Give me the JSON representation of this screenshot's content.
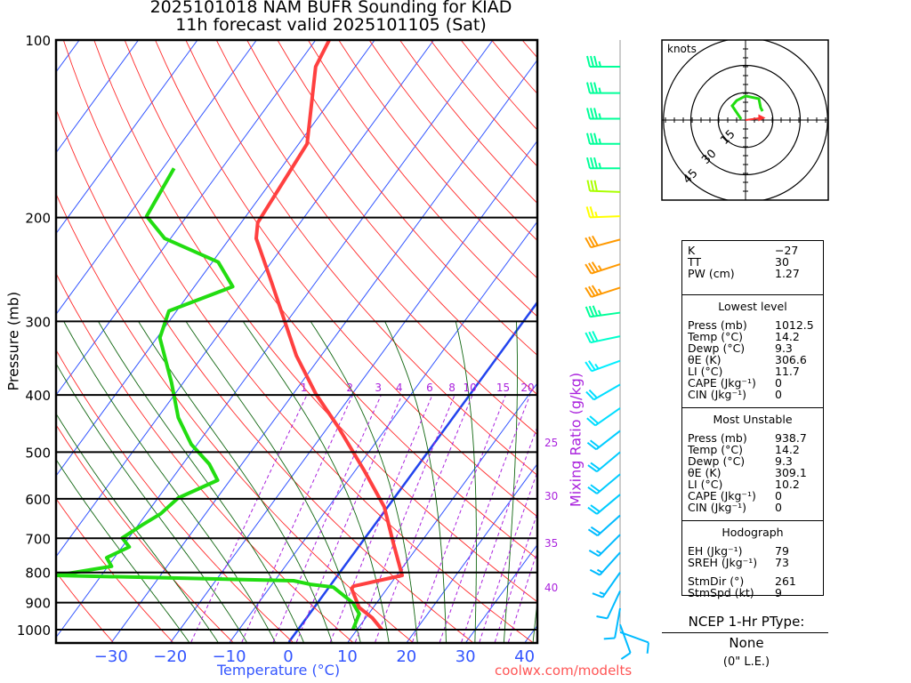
{
  "title": {
    "line1": "2025101018 NAM BUFR Sounding for KIAD",
    "line2": "11h forecast valid 2025101105 (Sat)"
  },
  "credit": "coolwx.com/modelts",
  "chart_data": {
    "type": "skew-t",
    "xlabel": "Temperature (°C)",
    "ylabel": "Pressure (mb)",
    "right_label": "Mixing Ratio (g/kg)",
    "pressure_ticks": [
      "100",
      "200",
      "300",
      "400",
      "500",
      "600",
      "700",
      "800",
      "900",
      "1000"
    ],
    "temp_ticks": [
      "−30",
      "−20",
      "−10",
      "0",
      "10",
      "20",
      "30",
      "40"
    ],
    "temp_tick_values": [
      -30,
      -20,
      -10,
      0,
      10,
      20,
      30,
      40
    ],
    "mixing_ratio_top_labels": [
      "1",
      "2",
      "3",
      "4",
      "6",
      "8",
      "10",
      "15",
      "20"
    ],
    "mixing_ratio_top_values": [
      1,
      2,
      3,
      4,
      6,
      8,
      10,
      15,
      20
    ],
    "mixing_ratio_right_labels": [
      "25",
      "30",
      "35",
      "40"
    ],
    "temperature_profile": [
      [
        1000,
        14.2
      ],
      [
        955,
        11.1
      ],
      [
        917,
        7.6
      ],
      [
        852,
        4.0
      ],
      [
        844,
        4.0
      ],
      [
        809,
        10.9
      ],
      [
        711,
        5.3
      ],
      [
        619,
        -0.6
      ],
      [
        539,
        -8.3
      ],
      [
        453,
        -18.3
      ],
      [
        398,
        -26.2
      ],
      [
        343,
        -34.2
      ],
      [
        258,
        -47.4
      ],
      [
        217,
        -55.5
      ],
      [
        204,
        -57.2
      ],
      [
        150,
        -58.6
      ],
      [
        111,
        -66.7
      ],
      [
        100,
        -67.7
      ]
    ],
    "dewpoint_profile": [
      [
        1000,
        9.3
      ],
      [
        940,
        8.4
      ],
      [
        901,
        6.0
      ],
      [
        847,
        0.7
      ],
      [
        838,
        -3.5
      ],
      [
        826,
        -6.8
      ],
      [
        809,
        -47.6
      ],
      [
        781,
        -39.4
      ],
      [
        755,
        -41.3
      ],
      [
        724,
        -38.8
      ],
      [
        699,
        -41.1
      ],
      [
        664,
        -39.3
      ],
      [
        636,
        -37.6
      ],
      [
        598,
        -36.6
      ],
      [
        558,
        -32.1
      ],
      [
        524,
        -35.5
      ],
      [
        485,
        -41.0
      ],
      [
        437,
        -46.5
      ],
      [
        381,
        -52.0
      ],
      [
        320,
        -59.5
      ],
      [
        288,
        -61.3
      ],
      [
        262,
        -53.5
      ],
      [
        238,
        -59.0
      ],
      [
        217,
        -71.0
      ],
      [
        199,
        -76.8
      ],
      [
        165,
        -78.1
      ]
    ],
    "wind_barbs": [
      {
        "p": 111,
        "dir": 270,
        "spd": 35,
        "color": "#00ff99"
      },
      {
        "p": 123,
        "dir": 270,
        "spd": 35,
        "color": "#00ff99"
      },
      {
        "p": 136,
        "dir": 270,
        "spd": 35,
        "color": "#00ff99"
      },
      {
        "p": 150,
        "dir": 270,
        "spd": 35,
        "color": "#00ff99"
      },
      {
        "p": 165,
        "dir": 270,
        "spd": 35,
        "color": "#00ff99"
      },
      {
        "p": 181,
        "dir": 272,
        "spd": 30,
        "color": "#aaff00"
      },
      {
        "p": 199,
        "dir": 268,
        "spd": 25,
        "color": "#ffff00"
      },
      {
        "p": 218,
        "dir": 255,
        "spd": 30,
        "color": "#ff9900"
      },
      {
        "p": 240,
        "dir": 252,
        "spd": 35,
        "color": "#ff9900"
      },
      {
        "p": 263,
        "dir": 252,
        "spd": 35,
        "color": "#ff9900"
      },
      {
        "p": 290,
        "dir": 262,
        "spd": 35,
        "color": "#00ff99"
      },
      {
        "p": 318,
        "dir": 258,
        "spd": 30,
        "color": "#00ffcc"
      },
      {
        "p": 350,
        "dir": 250,
        "spd": 25,
        "color": "#00eeff"
      },
      {
        "p": 384,
        "dir": 240,
        "spd": 20,
        "color": "#00ddff"
      },
      {
        "p": 421,
        "dir": 235,
        "spd": 20,
        "color": "#00ddff"
      },
      {
        "p": 460,
        "dir": 232,
        "spd": 20,
        "color": "#00ccff"
      },
      {
        "p": 500,
        "dir": 230,
        "spd": 20,
        "color": "#00ccff"
      },
      {
        "p": 545,
        "dir": 230,
        "spd": 20,
        "color": "#00ccff"
      },
      {
        "p": 590,
        "dir": 230,
        "spd": 20,
        "color": "#00ccff"
      },
      {
        "p": 640,
        "dir": 228,
        "spd": 20,
        "color": "#00bbff"
      },
      {
        "p": 690,
        "dir": 225,
        "spd": 15,
        "color": "#00bbff"
      },
      {
        "p": 740,
        "dir": 222,
        "spd": 15,
        "color": "#00bbff"
      },
      {
        "p": 800,
        "dir": 215,
        "spd": 15,
        "color": "#00bbff"
      },
      {
        "p": 860,
        "dir": 205,
        "spd": 10,
        "color": "#00bbff"
      },
      {
        "p": 920,
        "dir": 190,
        "spd": 10,
        "color": "#00bbff"
      },
      {
        "p": 980,
        "dir": 160,
        "spd": 10,
        "color": "#00bbff"
      },
      {
        "p": 1010,
        "dir": 110,
        "spd": 10,
        "color": "#00bbff"
      }
    ],
    "hodograph": {
      "units_label": "knots",
      "ring_labels": [
        "15",
        "30",
        "45"
      ],
      "trace_uv": [
        [
          -2.4,
          0.5
        ],
        [
          -7.3,
          7.8
        ],
        [
          -4.9,
          10.7
        ],
        [
          0,
          13.2
        ],
        [
          7.3,
          11.7
        ],
        [
          8.3,
          6.8
        ],
        [
          9.3,
          4.9
        ]
      ],
      "storm_motion_uv": [
        9.0,
        1.2
      ]
    }
  },
  "stats": {
    "indices": [
      {
        "k": "K",
        "v": "−27"
      },
      {
        "k": "TT",
        "v": "30"
      },
      {
        "k": "PW (cm)",
        "v": "1.27"
      }
    ],
    "lowest": {
      "title": "Lowest level",
      "rows": [
        {
          "k": "Press (mb)",
          "v": "1012.5"
        },
        {
          "k": "Temp (°C)",
          "v": "14.2"
        },
        {
          "k": "Dewp (°C)",
          "v": "9.3"
        },
        {
          "k": "θE (K)",
          "v": "306.6"
        },
        {
          "k": "LI (°C)",
          "v": "11.7"
        },
        {
          "k": "CAPE (Jkg⁻¹)",
          "v": "0"
        },
        {
          "k": "CIN (Jkg⁻¹)",
          "v": "0"
        }
      ]
    },
    "unstable": {
      "title": "Most Unstable",
      "rows": [
        {
          "k": "Press (mb)",
          "v": "938.7"
        },
        {
          "k": "Temp (°C)",
          "v": "14.2"
        },
        {
          "k": "Dewp (°C)",
          "v": "9.3"
        },
        {
          "k": "θE (K)",
          "v": "309.1"
        },
        {
          "k": "LI (°C)",
          "v": "10.2"
        },
        {
          "k": "CAPE (Jkg⁻¹)",
          "v": "0"
        },
        {
          "k": "CIN (Jkg⁻¹)",
          "v": "0"
        }
      ]
    },
    "hodo": {
      "title": "Hodograph",
      "rows": [
        {
          "k": "EH (Jkg⁻¹)",
          "v": "79"
        },
        {
          "k": "SREH (Jkg⁻¹)",
          "v": "73"
        }
      ],
      "rows2": [
        {
          "k": "StmDir (°)",
          "v": "261"
        },
        {
          "k": "StmSpd (kt)",
          "v": "9"
        }
      ]
    }
  },
  "ptype": {
    "title": "NCEP 1-Hr PType:",
    "value": "None",
    "sub": "(0\" L.E.)"
  },
  "colors": {
    "temp": "#ff4040",
    "dewp": "#22dd11",
    "isotherm": "#3355ff",
    "dry": "#ff2a2a",
    "moist": "#116611",
    "mixing": "#aa22dd",
    "frz": "#2244ee"
  }
}
